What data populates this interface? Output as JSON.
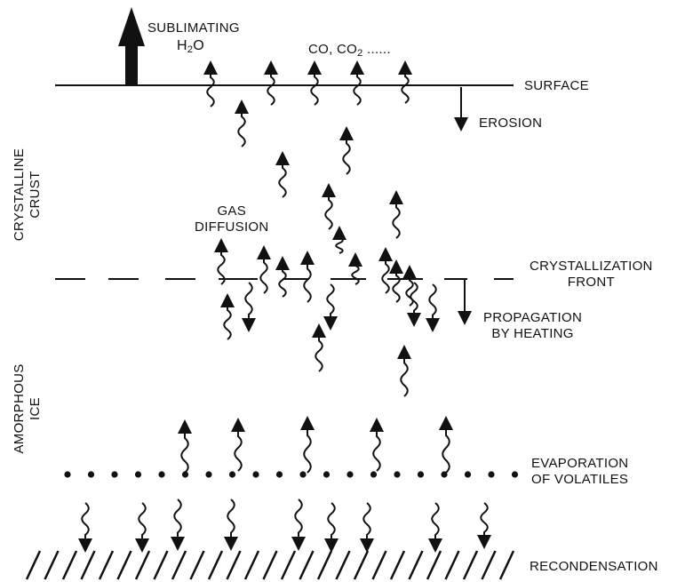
{
  "labels": {
    "sublimating": "SUBLIMATING",
    "h2o_h": "H",
    "h2o_sub": "2",
    "h2o_o": "O",
    "co": "CO, CO",
    "co2_sub": "2",
    "co_ellipsis": " ......",
    "surface": "SURFACE",
    "erosion": "EROSION",
    "crust_line1": "CRYSTALLINE",
    "crust_line2": "CRUST",
    "gas_line1": "GAS",
    "gas_line2": "DIFFUSION",
    "front_line1": "CRYSTALLIZATION",
    "front_line2": "FRONT",
    "prop_line1": "PROPAGATION",
    "prop_line2": "BY HEATING",
    "amorph_line1": "AMORPHOUS",
    "amorph_line2": "ICE",
    "evap_line1": "EVAPORATION",
    "evap_line2": "OF VOLATILES",
    "recond": "RECONDENSATION"
  },
  "style": {
    "ink": "#111111"
  }
}
